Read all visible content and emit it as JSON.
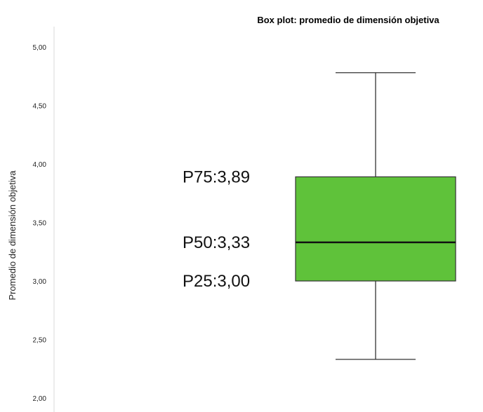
{
  "chart_data": {
    "type": "box",
    "title": "Box plot: promedio de dimensión objetiva",
    "ylabel": "Promedio de dimensión objetiva",
    "xlabel": "",
    "ylim": [
      2.0,
      5.0
    ],
    "yticks": [
      {
        "value": 2.0,
        "label": "2,00"
      },
      {
        "value": 2.5,
        "label": "2,50"
      },
      {
        "value": 3.0,
        "label": "3,00"
      },
      {
        "value": 3.5,
        "label": "3,50"
      },
      {
        "value": 4.0,
        "label": "4,00"
      },
      {
        "value": 4.5,
        "label": "4,50"
      },
      {
        "value": 5.0,
        "label": "5,00"
      }
    ],
    "box": {
      "whisker_low": 2.33,
      "q1": 3.0,
      "median": 3.33,
      "q3": 3.89,
      "whisker_high": 4.78,
      "fill_color": "#5fc23a"
    },
    "annotations": [
      {
        "text": "P75:3,89",
        "value": 3.89
      },
      {
        "text": "P50:3,33",
        "value": 3.33
      },
      {
        "text": "P25:3,00",
        "value": 3.0
      }
    ],
    "grid": false,
    "legend": "none"
  }
}
